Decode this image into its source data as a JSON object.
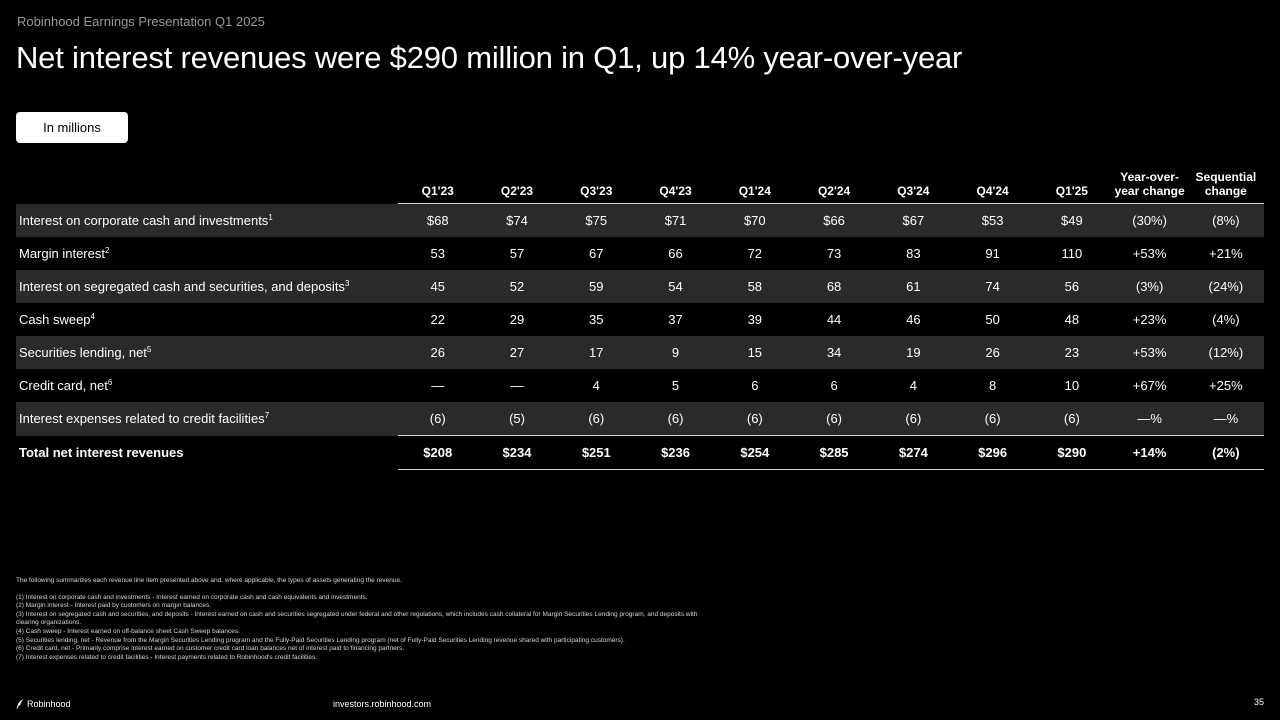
{
  "header": {
    "eyebrow": "Robinhood Earnings Presentation Q1 2025",
    "title": "Net interest revenues were $290 million in Q1, up 14% year-over-year",
    "unit_label": "In millions"
  },
  "table": {
    "columns": [
      "Q1'23",
      "Q2'23",
      "Q3'23",
      "Q4'23",
      "Q1'24",
      "Q2'24",
      "Q3'24",
      "Q4'24",
      "Q1'25"
    ],
    "yoy_header": [
      "Year-over-",
      "year change"
    ],
    "seq_header": [
      "Sequential",
      "change"
    ],
    "rows": [
      {
        "label": "Interest on corporate cash and investments",
        "note": "1",
        "values": [
          "$68",
          "$74",
          "$75",
          "$71",
          "$70",
          "$66",
          "$67",
          "$53",
          "$49"
        ],
        "yoy": "(30%)",
        "seq": "(8%)"
      },
      {
        "label": "Margin interest",
        "note": "2",
        "values": [
          "53",
          "57",
          "67",
          "66",
          "72",
          "73",
          "83",
          "91",
          "110"
        ],
        "yoy": "+53%",
        "seq": "+21%"
      },
      {
        "label": "Interest on segregated cash and securities, and deposits",
        "note": "3",
        "values": [
          "45",
          "52",
          "59",
          "54",
          "58",
          "68",
          "61",
          "74",
          "56"
        ],
        "yoy": "(3%)",
        "seq": "(24%)"
      },
      {
        "label": "Cash sweep",
        "note": "4",
        "values": [
          "22",
          "29",
          "35",
          "37",
          "39",
          "44",
          "46",
          "50",
          "48"
        ],
        "yoy": "+23%",
        "seq": "(4%)"
      },
      {
        "label": "Securities lending, net",
        "note": "5",
        "values": [
          "26",
          "27",
          "17",
          "9",
          "15",
          "34",
          "19",
          "26",
          "23"
        ],
        "yoy": "+53%",
        "seq": "(12%)"
      },
      {
        "label": "Credit card, net",
        "note": "6",
        "values": [
          "—",
          "—",
          "4",
          "5",
          "6",
          "6",
          "4",
          "8",
          "10"
        ],
        "yoy": "+67%",
        "seq": "+25%"
      },
      {
        "label": "Interest expenses related to credit facilities",
        "note": "7",
        "values": [
          "(6)",
          "(5)",
          "(6)",
          "(6)",
          "(6)",
          "(6)",
          "(6)",
          "(6)",
          "(6)"
        ],
        "yoy": "—%",
        "seq": "—%"
      }
    ],
    "total": {
      "label": "Total net interest revenues",
      "values": [
        "$208",
        "$234",
        "$251",
        "$236",
        "$254",
        "$285",
        "$274",
        "$296",
        "$290"
      ],
      "yoy": "+14%",
      "seq": "(2%)"
    }
  },
  "footnotes": {
    "intro": "The following summarizes each revenue line item presented above and, where applicable, the types of assets generating the revenue.",
    "items": [
      "(1) Interest on corporate cash and investments - Interest earned on corporate cash and cash equivalents and investments.",
      "(2) Margin interest - Interest paid by customers on margin balances.",
      "(3) Interest on segregated cash and securities, and deposits - Interest earned on cash and securities segregated under federal and other regulations, which includes cash collateral for Margin Securities Lending program, and deposits with clearing organizations.",
      "(4) Cash sweep - Interest earned on off-balance sheet Cash Sweep balances.",
      "(5) Securities lending, net - Revenue from the Margin Securities Lending program and the Fully-Paid Securities Lending program (net of Fully-Paid Securities Lending revenue shared with participating customers).",
      "(6) Credit card, net - Primarily comprise interest earned on customer credit card loan balances net of interest paid to financing partners.",
      "(7) Interest expenses related to credit facilities - Interest payments related to Robinhood's credit facilities."
    ]
  },
  "footer": {
    "logo_text": "Robinhood",
    "logo_icon": "feather-icon",
    "url": "investors.robinhood.com",
    "page": "35"
  }
}
